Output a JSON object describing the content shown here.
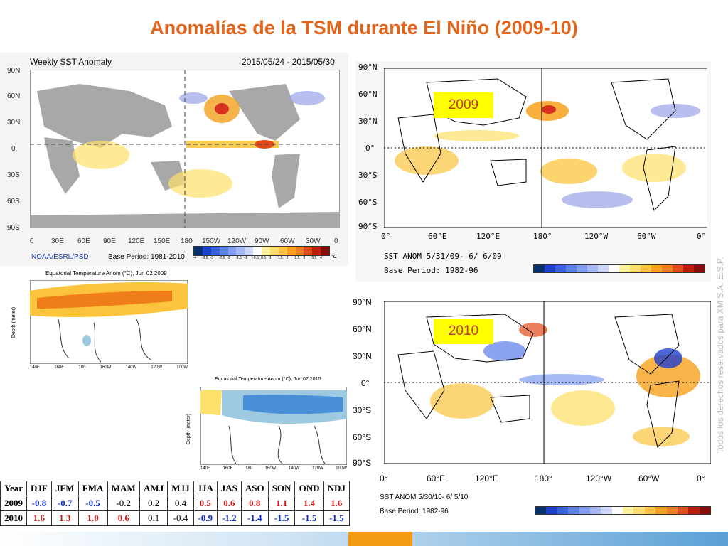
{
  "title": "Anomalías de la TSM durante El Niño (2009-10)",
  "weekly_map": {
    "title": "Weekly SST Anomaly",
    "dates": "2015/05/24 - 2015/05/30",
    "lat_labels": [
      "90N",
      "60N",
      "30N",
      "0",
      "30S",
      "60S",
      "90S"
    ],
    "lon_labels": [
      "0",
      "30E",
      "60E",
      "90E",
      "120E",
      "150E",
      "180",
      "150W",
      "120W",
      "90W",
      "60W",
      "30W",
      "0"
    ],
    "source": "NOAA/ESRL/PSD",
    "base_period": "Base Period: 1981-2010",
    "colorbar_labels": [
      "-4",
      "-3.5",
      "-3",
      "-2.5",
      "-2",
      "-1.5",
      "-1",
      "-0.5",
      "0.5",
      "1",
      "1.5",
      "2",
      "2.5",
      "3",
      "3.5",
      "4"
    ],
    "unit": "°C"
  },
  "map_2009": {
    "badge": "2009",
    "lat_labels": [
      "90°N",
      "60°N",
      "30°N",
      "0°",
      "30°S",
      "60°S",
      "90°S"
    ],
    "lon_labels": [
      "0°",
      "60°E",
      "120°E",
      "180°",
      "120°W",
      "60°W",
      "0°"
    ],
    "caption": "SST ANOM 5/31/09- 6/ 6/09",
    "base_period": "Base Period: 1982-96"
  },
  "map_2010": {
    "badge": "2010",
    "lat_labels": [
      "90°N",
      "60°N",
      "30°N",
      "0°",
      "30°S",
      "60°S",
      "90°S"
    ],
    "lon_labels": [
      "0°",
      "60°E",
      "120°E",
      "180°",
      "120°W",
      "60°W",
      "0°"
    ],
    "caption": "SST ANOM 5/30/10- 6/ 5/10",
    "base_period": "Base Period: 1982-96"
  },
  "depth_2009": {
    "title": "Equatorial Temperature Anom (°C), Jun 02 2009",
    "ylabel": "Depth (meter)",
    "lon_labels": [
      "140E",
      "160E",
      "180",
      "160W",
      "140W",
      "120W",
      "100W"
    ]
  },
  "depth_2010": {
    "title": "Equatorial Temperature Anom (°C), Jun 07 2010",
    "ylabel": "Depth (meter)",
    "lon_labels": [
      "140E",
      "160E",
      "180",
      "160W",
      "140W",
      "120W",
      "100W"
    ]
  },
  "oni_table": {
    "headers": [
      "Year",
      "DJF",
      "JFM",
      "FMA",
      "MAM",
      "AMJ",
      "MJJ",
      "JJA",
      "JAS",
      "ASO",
      "SON",
      "OND",
      "NDJ"
    ],
    "rows": [
      {
        "year": "2009",
        "values": [
          "-0.8",
          "-0.7",
          "-0.5",
          "-0.2",
          "0.2",
          "0.4",
          "0.5",
          "0.6",
          "0.8",
          "1.1",
          "1.4",
          "1.6"
        ],
        "styles": [
          "neg",
          "neg",
          "neg",
          "neu",
          "neu",
          "neu",
          "pos",
          "pos",
          "pos",
          "pos",
          "pos",
          "pos"
        ]
      },
      {
        "year": "2010",
        "values": [
          "1.6",
          "1.3",
          "1.0",
          "0.6",
          "0.1",
          "-0.4",
          "-0.9",
          "-1.2",
          "-1.4",
          "-1.5",
          "-1.5",
          "-1.5"
        ],
        "styles": [
          "pos",
          "pos",
          "pos",
          "pos",
          "neu",
          "neu",
          "neg",
          "neg",
          "neg",
          "neg",
          "neg",
          "neg"
        ]
      }
    ]
  },
  "watermark": "Todos los derechos reservados para XM S.A. E.S.P.",
  "colors": {
    "title": "#e0641c",
    "badge": "#ffff00",
    "negative": "#0b2bd6",
    "positive": "#d01818"
  }
}
